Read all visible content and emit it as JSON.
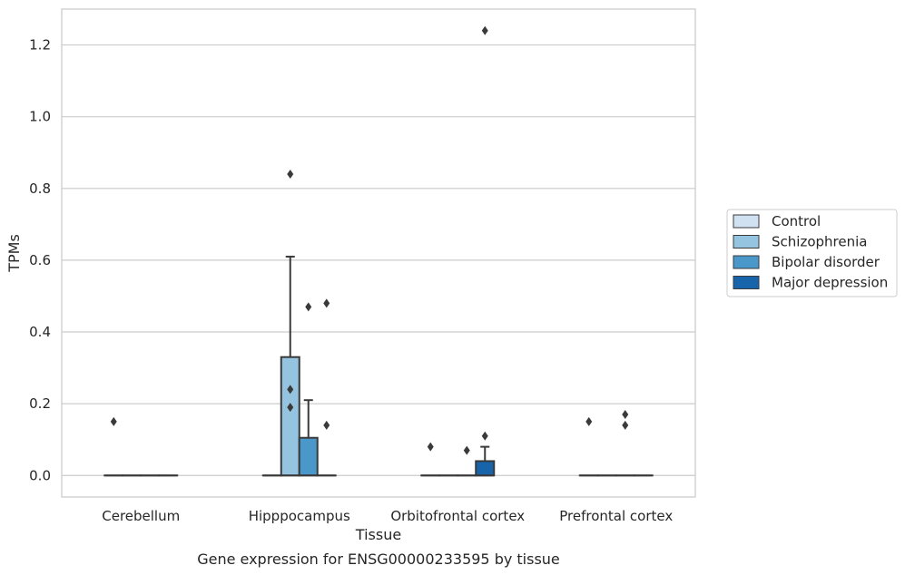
{
  "caption": "Gene expression for ENSG00000233595 by tissue",
  "chart_data": {
    "type": "box",
    "xlabel": "Tissue",
    "ylabel": "TPMs",
    "categories": [
      "Cerebellum",
      "Hipppocampus",
      "Orbitofrontal cortex",
      "Prefrontal cortex"
    ],
    "ylim": [
      -0.06,
      1.3
    ],
    "yticks": [
      0.0,
      0.2,
      0.4,
      0.6,
      0.8,
      1.0,
      1.2
    ],
    "ytick_labels": [
      "0.0",
      "0.2",
      "0.4",
      "0.6",
      "0.8",
      "1.0",
      "1.2"
    ],
    "grid": "horizontal",
    "legend_position": "right",
    "series": [
      {
        "name": "Control",
        "color": "#d0e1f2",
        "boxes": [
          {
            "q1": 0,
            "median": 0,
            "q3": 0,
            "whisker_low": 0,
            "whisker_high": 0,
            "outliers": [
              0.15
            ]
          },
          {
            "q1": 0,
            "median": 0,
            "q3": 0,
            "whisker_low": 0,
            "whisker_high": 0,
            "outliers": []
          },
          {
            "q1": 0,
            "median": 0,
            "q3": 0,
            "whisker_low": 0,
            "whisker_high": 0,
            "outliers": [
              0.08
            ]
          },
          {
            "q1": 0,
            "median": 0,
            "q3": 0,
            "whisker_low": 0,
            "whisker_high": 0,
            "outliers": [
              0.15
            ]
          }
        ]
      },
      {
        "name": "Schizophrenia",
        "color": "#94c4df",
        "boxes": [
          {
            "q1": 0,
            "median": 0,
            "q3": 0,
            "whisker_low": 0,
            "whisker_high": 0,
            "outliers": []
          },
          {
            "q1": 0,
            "median": 0,
            "q3": 0.33,
            "whisker_low": 0,
            "whisker_high": 0.61,
            "outliers": [
              0.24,
              0.19,
              0.84
            ]
          },
          {
            "q1": 0,
            "median": 0,
            "q3": 0,
            "whisker_low": 0,
            "whisker_high": 0,
            "outliers": []
          },
          {
            "q1": 0,
            "median": 0,
            "q3": 0,
            "whisker_low": 0,
            "whisker_high": 0,
            "outliers": []
          }
        ]
      },
      {
        "name": "Bipolar disorder",
        "color": "#4a98c9",
        "boxes": [
          {
            "q1": 0,
            "median": 0,
            "q3": 0,
            "whisker_low": 0,
            "whisker_high": 0,
            "outliers": []
          },
          {
            "q1": 0,
            "median": 0,
            "q3": 0.105,
            "whisker_low": 0,
            "whisker_high": 0.21,
            "outliers": [
              0.47
            ]
          },
          {
            "q1": 0,
            "median": 0,
            "q3": 0,
            "whisker_low": 0,
            "whisker_high": 0,
            "outliers": [
              0.07
            ]
          },
          {
            "q1": 0,
            "median": 0,
            "q3": 0,
            "whisker_low": 0,
            "whisker_high": 0,
            "outliers": [
              0.17,
              0.14
            ]
          }
        ]
      },
      {
        "name": "Major depression",
        "color": "#1764ab",
        "boxes": [
          {
            "q1": 0,
            "median": 0,
            "q3": 0,
            "whisker_low": 0,
            "whisker_high": 0,
            "outliers": []
          },
          {
            "q1": 0,
            "median": 0,
            "q3": 0,
            "whisker_low": 0,
            "whisker_high": 0,
            "outliers": [
              0.48,
              0.14
            ]
          },
          {
            "q1": 0,
            "median": 0,
            "q3": 0.04,
            "whisker_low": 0,
            "whisker_high": 0.08,
            "outliers": [
              0.11,
              1.24
            ]
          },
          {
            "q1": 0,
            "median": 0,
            "q3": 0,
            "whisker_low": 0,
            "whisker_high": 0,
            "outliers": []
          }
        ]
      }
    ]
  }
}
